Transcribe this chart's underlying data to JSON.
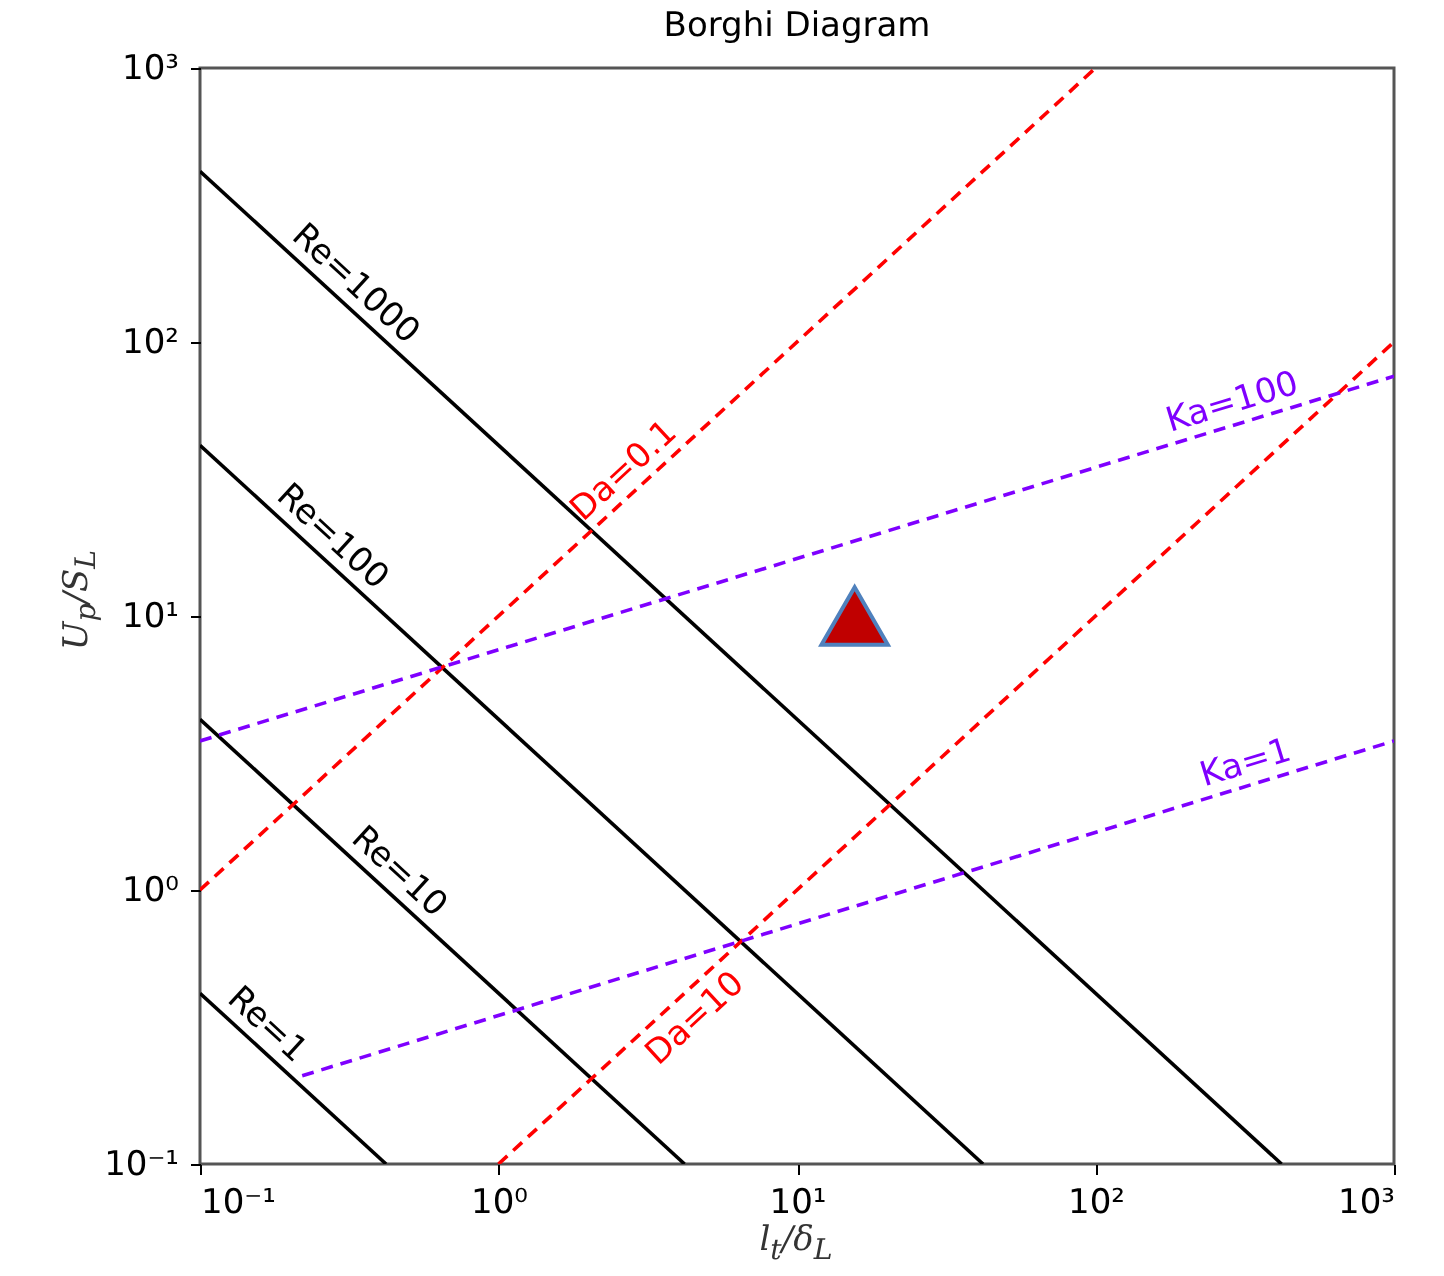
{
  "chart_data": {
    "type": "line",
    "title": "Borghi Diagram",
    "xlabel": "l$_{t}$/δ$_{L}$",
    "ylabel": "U$_{p}$/S$_{L}$",
    "log": "xy",
    "xlim": [
      0.1,
      1000
    ],
    "ylim": [
      0.1,
      1000
    ],
    "xticks": [
      {
        "value": 0.1,
        "label": "10⁻¹"
      },
      {
        "value": 1,
        "label": "10⁰"
      },
      {
        "value": 10,
        "label": "10¹"
      },
      {
        "value": 100,
        "label": "10²"
      },
      {
        "value": 1000,
        "label": "10³"
      }
    ],
    "yticks": [
      {
        "value": 0.1,
        "label": "10⁻¹"
      },
      {
        "value": 1,
        "label": "10⁰"
      },
      {
        "value": 10,
        "label": "10¹"
      },
      {
        "value": 100,
        "label": "10²"
      },
      {
        "value": 1000,
        "label": "10³"
      }
    ],
    "series": [
      {
        "name": "Re=1000",
        "color": "#000000",
        "line_style": "solid",
        "x": [
          0.1,
          420
        ],
        "values": [
          420,
          0.1
        ]
      },
      {
        "name": "Re=100",
        "color": "#000000",
        "line_style": "solid",
        "x": [
          0.1,
          42
        ],
        "values": [
          42,
          0.1
        ]
      },
      {
        "name": "Re=10",
        "color": "#000000",
        "line_style": "solid",
        "x": [
          0.1,
          4.2
        ],
        "values": [
          4.2,
          0.1
        ]
      },
      {
        "name": "Re=1",
        "color": "#000000",
        "line_style": "solid",
        "x": [
          0.1,
          0.42
        ],
        "values": [
          0.42,
          0.1
        ]
      },
      {
        "name": "Da=0.1",
        "color": "#ff0000",
        "line_style": "dashed",
        "x": [
          0.1,
          100
        ],
        "values": [
          1,
          1000
        ]
      },
      {
        "name": "Da=10",
        "color": "#ff0000",
        "line_style": "dashed",
        "x": [
          1,
          1000
        ],
        "values": [
          0.1,
          100
        ]
      },
      {
        "name": "Ka=100",
        "color": "#7f00ff",
        "line_style": "dashed",
        "x": [
          0.1,
          1000
        ],
        "values": [
          3.5,
          75
        ]
      },
      {
        "name": "Ka=1",
        "color": "#7f00ff",
        "line_style": "dashed",
        "x": [
          0.22,
          1000
        ],
        "values": [
          0.21,
          3.5
        ]
      },
      {
        "type": "scatter",
        "color": "#c00000",
        "marker": "triangle",
        "x": [
          15.6
        ],
        "values": [
          10
        ]
      }
    ]
  }
}
